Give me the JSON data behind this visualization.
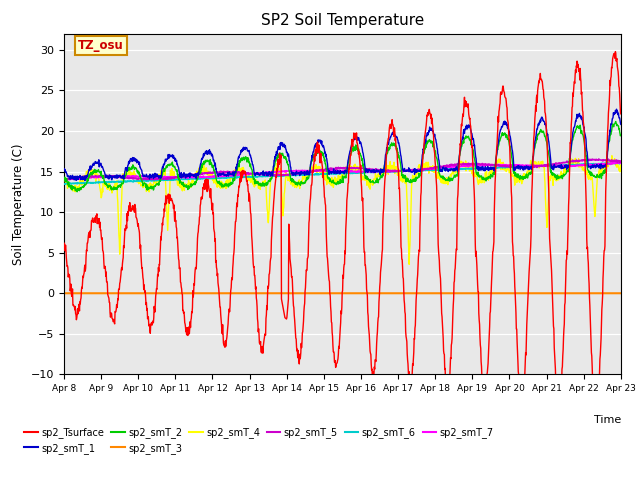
{
  "title": "SP2 Soil Temperature",
  "ylabel": "Soil Temperature (C)",
  "xlabel": "Time",
  "n_days": 15,
  "ylim": [
    -10,
    32
  ],
  "yticks": [
    -10,
    -5,
    0,
    5,
    10,
    15,
    20,
    25,
    30
  ],
  "xtick_labels": [
    "Apr 8",
    "Apr 9",
    "Apr 10",
    "Apr 11",
    "Apr 12",
    "Apr 13",
    "Apr 14",
    "Apr 15",
    "Apr 16",
    "Apr 17",
    "Apr 18",
    "Apr 19",
    "Apr 20",
    "Apr 21",
    "Apr 22",
    "Apr 23"
  ],
  "bg_color": "#e8e8e8",
  "fig_bg": "#ffffff",
  "series_colors": {
    "sp2_Tsurface": "#ff0000",
    "sp2_smT_1": "#0000cc",
    "sp2_smT_2": "#00cc00",
    "sp2_smT_3": "#ff8800",
    "sp2_smT_4": "#ffff00",
    "sp2_smT_5": "#cc00cc",
    "sp2_smT_6": "#00cccc",
    "sp2_smT_7": "#ff00ff"
  },
  "annotation_text": "TZ_osu",
  "annotation_color": "#cc0000",
  "annotation_bg": "#ffffcc",
  "annotation_border": "#cc8800"
}
